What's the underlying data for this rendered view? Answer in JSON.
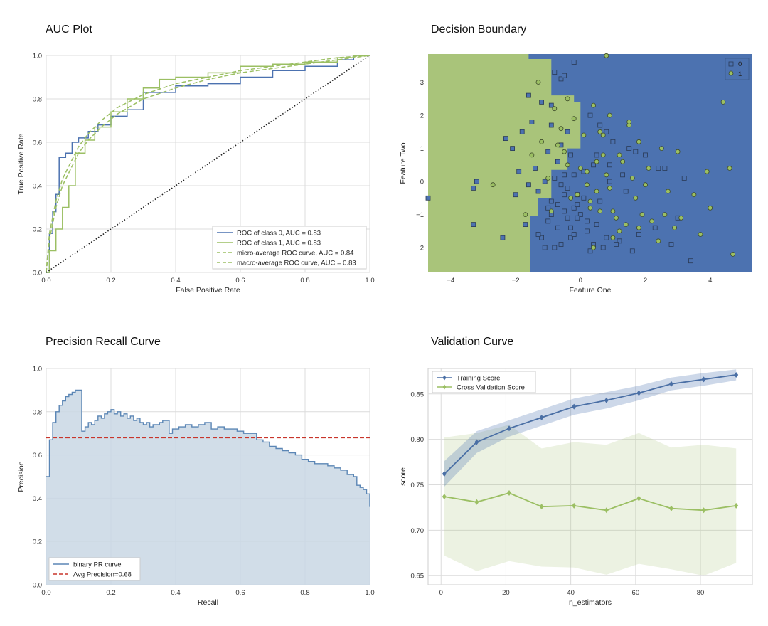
{
  "colors": {
    "plot_bg": "#eaeaf2",
    "grid": "#ffffff",
    "blue": "#4c72b0",
    "green": "#9bbf63",
    "green_fill": "#a9c47a",
    "blue_fill": "#c9d7e4",
    "red": "#c8352b",
    "frame": "#d9d9d9",
    "text": "#222222"
  },
  "chart_data": [
    {
      "id": "auc",
      "type": "line",
      "title": "AUC Plot",
      "xlabel": "False Positive Rate",
      "ylabel": "True Positive Rate",
      "xlim": [
        0,
        1
      ],
      "ylim": [
        0,
        1
      ],
      "xticks": [
        "0.0",
        "0.2",
        "0.4",
        "0.6",
        "0.8",
        "1.0"
      ],
      "yticks": [
        "0.0",
        "0.2",
        "0.4",
        "0.6",
        "0.8",
        "1.0"
      ],
      "legend_position": "lower-right",
      "series": [
        {
          "name": "ROC of class 0, AUC = 0.83",
          "style": "step",
          "color": "blue",
          "x": [
            0,
            0.01,
            0.01,
            0.02,
            0.02,
            0.03,
            0.03,
            0.04,
            0.04,
            0.06,
            0.06,
            0.08,
            0.08,
            0.1,
            0.1,
            0.13,
            0.13,
            0.16,
            0.16,
            0.2,
            0.2,
            0.25,
            0.25,
            0.3,
            0.3,
            0.4,
            0.4,
            0.5,
            0.5,
            0.6,
            0.6,
            0.7,
            0.7,
            0.8,
            0.8,
            0.9,
            0.9,
            0.95,
            0.95,
            1.0
          ],
          "y": [
            0,
            0,
            0.18,
            0.18,
            0.28,
            0.28,
            0.36,
            0.36,
            0.53,
            0.53,
            0.55,
            0.55,
            0.6,
            0.6,
            0.62,
            0.62,
            0.65,
            0.65,
            0.68,
            0.68,
            0.72,
            0.72,
            0.75,
            0.75,
            0.83,
            0.83,
            0.86,
            0.86,
            0.87,
            0.87,
            0.9,
            0.9,
            0.93,
            0.93,
            0.95,
            0.95,
            0.98,
            0.98,
            1.0,
            1.0
          ]
        },
        {
          "name": "ROC of class 1, AUC = 0.83",
          "style": "step",
          "color": "green",
          "x": [
            0,
            0.01,
            0.01,
            0.03,
            0.03,
            0.05,
            0.05,
            0.07,
            0.07,
            0.09,
            0.09,
            0.12,
            0.12,
            0.15,
            0.15,
            0.2,
            0.2,
            0.25,
            0.25,
            0.3,
            0.3,
            0.35,
            0.35,
            0.4,
            0.4,
            0.5,
            0.5,
            0.6,
            0.6,
            0.7,
            0.7,
            0.8,
            0.8,
            0.9,
            0.9,
            0.95,
            0.95,
            1.0
          ],
          "y": [
            0,
            0,
            0.1,
            0.1,
            0.2,
            0.2,
            0.3,
            0.3,
            0.4,
            0.4,
            0.55,
            0.55,
            0.61,
            0.61,
            0.67,
            0.67,
            0.74,
            0.74,
            0.8,
            0.8,
            0.85,
            0.85,
            0.89,
            0.89,
            0.9,
            0.9,
            0.92,
            0.92,
            0.95,
            0.95,
            0.96,
            0.96,
            0.97,
            0.97,
            0.99,
            0.99,
            1.0,
            1.0
          ]
        },
        {
          "name": "micro-average ROC curve, AUC = 0.84",
          "style": "dashed",
          "color": "green",
          "x": [
            0,
            0.01,
            0.03,
            0.05,
            0.08,
            0.1,
            0.13,
            0.17,
            0.22,
            0.3,
            0.4,
            0.5,
            0.6,
            0.7,
            0.8,
            0.9,
            1.0
          ],
          "y": [
            0,
            0.18,
            0.33,
            0.43,
            0.52,
            0.58,
            0.64,
            0.7,
            0.76,
            0.82,
            0.87,
            0.9,
            0.93,
            0.95,
            0.97,
            0.99,
            1.0
          ]
        },
        {
          "name": "macro-average ROC curve, AUC = 0.83",
          "style": "dashed",
          "color": "green",
          "x": [
            0,
            0.01,
            0.03,
            0.05,
            0.08,
            0.1,
            0.13,
            0.17,
            0.22,
            0.3,
            0.4,
            0.5,
            0.6,
            0.7,
            0.8,
            0.9,
            1.0
          ],
          "y": [
            0,
            0.15,
            0.3,
            0.4,
            0.49,
            0.55,
            0.61,
            0.67,
            0.73,
            0.8,
            0.85,
            0.89,
            0.92,
            0.94,
            0.96,
            0.98,
            1.0
          ]
        },
        {
          "name": "chance",
          "style": "dotted",
          "color": "text",
          "x": [
            0,
            1
          ],
          "y": [
            0,
            1
          ],
          "show_in_legend": false
        }
      ]
    },
    {
      "id": "boundary",
      "type": "scatter",
      "title": "Decision Boundary",
      "xlabel": "Feature One",
      "ylabel": "Feature Two",
      "xlim": [
        -4.7,
        5.3
      ],
      "ylim": [
        -2.75,
        3.85
      ],
      "xticks": [
        -4,
        -2,
        0,
        2,
        4
      ],
      "yticks": [
        -2,
        -1,
        0,
        1,
        2,
        3
      ],
      "legend_position": "top-right",
      "region_class1_polygon": [
        [
          -4.7,
          3.85
        ],
        [
          -1.6,
          3.85
        ],
        [
          -1.6,
          3.7
        ],
        [
          -0.9,
          3.7
        ],
        [
          -0.9,
          2.6
        ],
        [
          -0.2,
          2.6
        ],
        [
          -0.2,
          2.4
        ],
        [
          0,
          2.4
        ],
        [
          0,
          1.0
        ],
        [
          -0.4,
          1.0
        ],
        [
          -0.4,
          0.35
        ],
        [
          -0.9,
          0.35
        ],
        [
          -0.9,
          -0.5
        ],
        [
          -1.3,
          -0.5
        ],
        [
          -1.3,
          -1.05
        ],
        [
          -1.55,
          -1.05
        ],
        [
          -1.55,
          -2.75
        ],
        [
          -4.7,
          -2.75
        ]
      ],
      "series": [
        {
          "name": "0",
          "marker": "square",
          "color": "blue",
          "x": [
            -0.8,
            -0.6,
            -1.2,
            -0.5,
            -1.8,
            -2.3,
            -1.5,
            -0.9,
            -0.4,
            -0.2,
            -1.0,
            -0.7,
            -2.1,
            -1.4,
            -0.3,
            -0.8,
            -1.1,
            -0.6,
            -3.2,
            -3.3,
            -1.9,
            -1.3,
            -0.5,
            -0.9,
            -0.2,
            -0.4,
            -1.0,
            -0.7,
            0.2,
            0.5,
            0.8,
            1.2,
            1.8,
            2.3,
            0.3,
            0.6,
            1.0,
            1.5,
            2.0,
            2.6,
            3.2,
            0.4,
            0.9,
            1.4,
            0.1,
            -0.1,
            -0.5,
            -0.3,
            0.7,
            1.1,
            1.6,
            2.8,
            3.4,
            -0.6,
            -0.8,
            -1.2,
            -0.4,
            -0.9,
            0.3,
            0.0,
            -0.2,
            -1.6,
            -2.0,
            -1.7,
            -1.3,
            -0.5,
            -0.1,
            0.5,
            0.9,
            1.3,
            0.2,
            -0.7,
            -1.0,
            2.4,
            0.8,
            1.7,
            -0.6,
            -0.3,
            -0.1,
            0.6,
            -4.7,
            0.4,
            -1.1,
            -2.4,
            -3.3,
            3.0,
            -0.9,
            0.1,
            -1.6,
            -0.2
          ],
          "y": [
            3.3,
            3.1,
            2.4,
            3.2,
            1.5,
            1.3,
            1.8,
            1.7,
            1.5,
            3.6,
            0.9,
            0.6,
            1.0,
            0.4,
            0.8,
            0.1,
            0.0,
            -0.1,
            0.0,
            -0.2,
            0.3,
            -0.3,
            -0.4,
            -0.6,
            -0.8,
            -1.1,
            -1.2,
            -1.4,
            -1.5,
            -1.3,
            -1.7,
            -1.8,
            -1.6,
            -1.4,
            2.0,
            1.7,
            1.2,
            1.0,
            0.8,
            0.4,
            0.1,
            0.5,
            0.0,
            -0.3,
            -0.5,
            -0.7,
            -0.9,
            -1.7,
            -2.0,
            -1.9,
            -2.1,
            -1.9,
            -2.4,
            -1.9,
            -2.0,
            -1.7,
            -0.2,
            -1.0,
            -2.1,
            -1.0,
            0.2,
            -0.1,
            -0.4,
            -1.3,
            -1.6,
            0.2,
            -1.1,
            0.8,
            0.5,
            0.2,
            -1.2,
            -0.7,
            -0.8,
            0.4,
            1.5,
            0.9,
            1.1,
            -1.4,
            -0.4,
            -0.6,
            -0.5,
            -1.9,
            -2.0,
            -1.7,
            -1.3,
            -1.1,
            2.3,
            0.3,
            2.6,
            -1.6
          ]
        },
        {
          "name": "1",
          "marker": "circle",
          "color": "green",
          "x": [
            0.4,
            0.9,
            1.5,
            0.7,
            1.8,
            2.5,
            3.0,
            1.2,
            0.5,
            0.2,
            0.8,
            1.6,
            2.0,
            2.7,
            3.5,
            4.0,
            4.7,
            0.3,
            0.6,
            1.1,
            1.9,
            2.2,
            2.9,
            3.7,
            1.0,
            0.4,
            -0.4,
            -0.8,
            -1.3,
            -0.2,
            0.1,
            0.7,
            1.3,
            2.1,
            0.9,
            1.7,
            -1.5,
            -1.2,
            -0.6,
            -0.9,
            -0.3,
            0.5,
            1.4,
            2.4,
            3.1,
            3.9,
            4.6,
            0.2,
            0.8,
            1.5,
            -0.5,
            -1.0,
            -0.7,
            0.0,
            0.3,
            -0.1,
            1.2,
            2.6,
            -2.7,
            -1.7,
            -0.4,
            0.6,
            1.0,
            1.8,
            4.4
          ],
          "y": [
            2.3,
            2.0,
            1.7,
            1.4,
            1.2,
            1.0,
            0.9,
            0.8,
            0.6,
            0.3,
            0.2,
            0.1,
            -0.1,
            -0.3,
            -0.4,
            -0.8,
            -2.2,
            -0.6,
            -0.9,
            -1.1,
            -1.0,
            -1.2,
            -1.4,
            -1.6,
            -1.7,
            -2.0,
            2.5,
            2.2,
            3.0,
            1.9,
            1.4,
            0.8,
            0.6,
            0.4,
            -0.2,
            -0.5,
            0.8,
            1.2,
            1.6,
            -0.9,
            -0.5,
            -0.3,
            -1.3,
            -1.8,
            -1.1,
            0.3,
            0.4,
            -0.1,
            3.8,
            1.8,
            0.9,
            0.1,
            1.1,
            0.4,
            -0.8,
            -0.4,
            -1.5,
            -1.0,
            -0.1,
            -1.0,
            0.5,
            1.5,
            -0.9,
            -1.4,
            2.4
          ]
        }
      ]
    },
    {
      "id": "pr",
      "type": "area",
      "title": "Precision Recall Curve",
      "xlabel": "Recall",
      "ylabel": "Precision",
      "xlim": [
        0,
        1
      ],
      "ylim": [
        0,
        1
      ],
      "xticks": [
        "0.0",
        "0.2",
        "0.4",
        "0.6",
        "0.8",
        "1.0"
      ],
      "yticks": [
        "0.0",
        "0.2",
        "0.4",
        "0.6",
        "0.8",
        "1.0"
      ],
      "legend_position": "lower-left",
      "avg_precision": 0.68,
      "series": [
        {
          "name": "binary PR curve",
          "style": "step",
          "color": "blue",
          "x": [
            0,
            0.01,
            0.02,
            0.03,
            0.04,
            0.05,
            0.06,
            0.07,
            0.08,
            0.09,
            0.11,
            0.12,
            0.13,
            0.14,
            0.15,
            0.16,
            0.17,
            0.18,
            0.19,
            0.2,
            0.21,
            0.22,
            0.23,
            0.24,
            0.25,
            0.26,
            0.27,
            0.28,
            0.29,
            0.3,
            0.31,
            0.32,
            0.33,
            0.34,
            0.35,
            0.36,
            0.38,
            0.39,
            0.41,
            0.43,
            0.45,
            0.47,
            0.49,
            0.51,
            0.53,
            0.55,
            0.57,
            0.59,
            0.61,
            0.63,
            0.65,
            0.67,
            0.69,
            0.71,
            0.73,
            0.75,
            0.77,
            0.79,
            0.81,
            0.83,
            0.85,
            0.87,
            0.89,
            0.91,
            0.93,
            0.95,
            0.96,
            0.97,
            0.98,
            0.99,
            1.0
          ],
          "y": [
            0.5,
            0.67,
            0.75,
            0.8,
            0.83,
            0.85,
            0.87,
            0.88,
            0.89,
            0.9,
            0.71,
            0.73,
            0.75,
            0.74,
            0.76,
            0.78,
            0.77,
            0.79,
            0.8,
            0.81,
            0.79,
            0.8,
            0.78,
            0.79,
            0.77,
            0.78,
            0.76,
            0.77,
            0.75,
            0.74,
            0.75,
            0.73,
            0.74,
            0.74,
            0.75,
            0.76,
            0.7,
            0.72,
            0.73,
            0.74,
            0.73,
            0.74,
            0.75,
            0.72,
            0.73,
            0.72,
            0.72,
            0.71,
            0.7,
            0.7,
            0.67,
            0.66,
            0.64,
            0.63,
            0.62,
            0.61,
            0.6,
            0.58,
            0.57,
            0.56,
            0.56,
            0.55,
            0.54,
            0.53,
            0.51,
            0.5,
            0.46,
            0.45,
            0.44,
            0.42,
            0.36
          ]
        },
        {
          "name": "Avg Precision=0.68",
          "style": "dashed",
          "color": "red",
          "x": [
            0,
            1
          ],
          "y": [
            0.68,
            0.68
          ]
        }
      ]
    },
    {
      "id": "validation",
      "type": "line",
      "title": "Validation Curve",
      "xlabel": "n_estimators",
      "ylabel": "score",
      "xlim": [
        -4,
        96
      ],
      "ylim": [
        0.64,
        0.878
      ],
      "xticks": [
        0,
        20,
        40,
        60,
        80
      ],
      "yticks": [
        "0.65",
        "0.70",
        "0.75",
        "0.80",
        "0.85"
      ],
      "legend_position": "top-left",
      "x": [
        1,
        11,
        21,
        31,
        41,
        51,
        61,
        71,
        81,
        91
      ],
      "series": [
        {
          "name": "Training Score",
          "color": "blue",
          "marker": "diamond",
          "values": [
            0.762,
            0.797,
            0.812,
            0.824,
            0.836,
            0.843,
            0.851,
            0.861,
            0.866,
            0.871
          ],
          "lower": [
            0.748,
            0.785,
            0.803,
            0.815,
            0.827,
            0.834,
            0.843,
            0.854,
            0.859,
            0.865
          ],
          "upper": [
            0.776,
            0.809,
            0.821,
            0.833,
            0.845,
            0.852,
            0.859,
            0.868,
            0.873,
            0.877
          ]
        },
        {
          "name": "Cross Validation Score",
          "color": "green",
          "marker": "diamond",
          "values": [
            0.737,
            0.731,
            0.741,
            0.726,
            0.727,
            0.722,
            0.735,
            0.724,
            0.722,
            0.727
          ],
          "lower": [
            0.672,
            0.655,
            0.666,
            0.66,
            0.659,
            0.651,
            0.663,
            0.657,
            0.65,
            0.664
          ],
          "upper": [
            0.802,
            0.807,
            0.816,
            0.79,
            0.797,
            0.794,
            0.807,
            0.791,
            0.794,
            0.79
          ]
        }
      ]
    }
  ]
}
